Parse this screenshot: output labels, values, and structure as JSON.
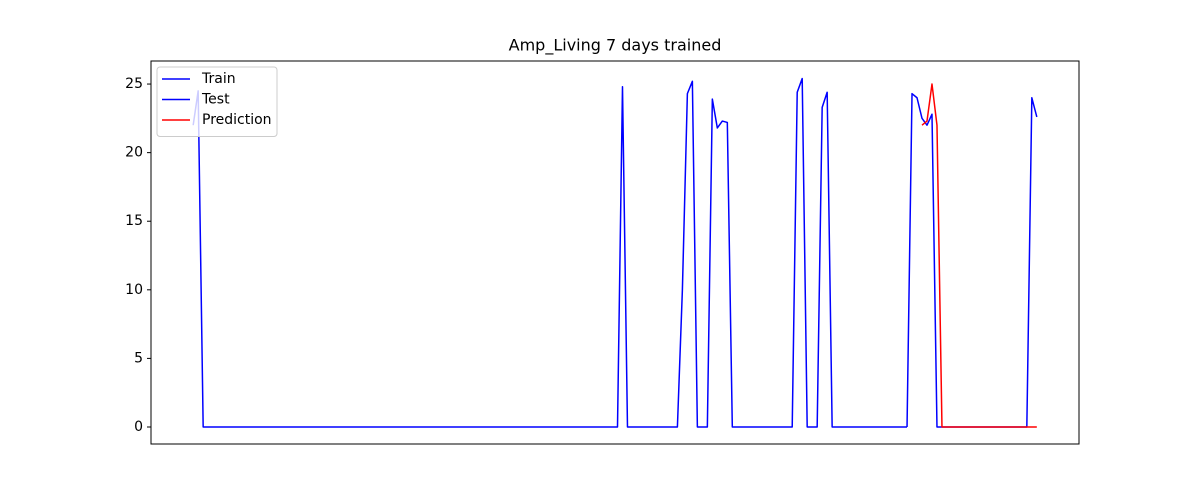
{
  "chart_data": {
    "type": "line",
    "title": "Amp_Living 7 days trained",
    "series": [
      {
        "name": "Train",
        "color": "#0000ff",
        "values": [
          22,
          24.5,
          0,
          0,
          0,
          0,
          0,
          0,
          0,
          0,
          0,
          0,
          0,
          0,
          0,
          0,
          0,
          0,
          0,
          0,
          0,
          0,
          0,
          0,
          0,
          0,
          0,
          0,
          0,
          0,
          0,
          0,
          0,
          0,
          0,
          0,
          0,
          0,
          0,
          0,
          0,
          0,
          0,
          0,
          0,
          0,
          0,
          0,
          0,
          0,
          0,
          0,
          0,
          0,
          0,
          0,
          0,
          0,
          0,
          0,
          0,
          0,
          0,
          0,
          0,
          0,
          0,
          0,
          0,
          0,
          0,
          0,
          0,
          0,
          0,
          0,
          0,
          0,
          0,
          0,
          0,
          0,
          0,
          0,
          0,
          0,
          24.8,
          0,
          0,
          0,
          0,
          0,
          0,
          0,
          0,
          0,
          0,
          0,
          10,
          24.3,
          25.2,
          0,
          0,
          0,
          23.9,
          21.8,
          22.3,
          22.2,
          0,
          0,
          0,
          0,
          0,
          0,
          0,
          0,
          0,
          0,
          0,
          0,
          0,
          24.4,
          25.4,
          0,
          0,
          0,
          23.3,
          24.4,
          0,
          0,
          0,
          0,
          0,
          0,
          0,
          0,
          0,
          0,
          0,
          0,
          0,
          0,
          0,
          0,
          null,
          null,
          null,
          null,
          null,
          null,
          null,
          null,
          null,
          null,
          null,
          null,
          null,
          null,
          null,
          null,
          null,
          null,
          null,
          null,
          null,
          null,
          null,
          null,
          null,
          null
        ]
      },
      {
        "name": "Test",
        "color": "#0000ff",
        "values": [
          null,
          null,
          null,
          null,
          null,
          null,
          null,
          null,
          null,
          null,
          null,
          null,
          null,
          null,
          null,
          null,
          null,
          null,
          null,
          null,
          null,
          null,
          null,
          null,
          null,
          null,
          null,
          null,
          null,
          null,
          null,
          null,
          null,
          null,
          null,
          null,
          null,
          null,
          null,
          null,
          null,
          null,
          null,
          null,
          null,
          null,
          null,
          null,
          null,
          null,
          null,
          null,
          null,
          null,
          null,
          null,
          null,
          null,
          null,
          null,
          null,
          null,
          null,
          null,
          null,
          null,
          null,
          null,
          null,
          null,
          null,
          null,
          null,
          null,
          null,
          null,
          null,
          null,
          null,
          null,
          null,
          null,
          null,
          null,
          null,
          null,
          null,
          null,
          null,
          null,
          null,
          null,
          null,
          null,
          null,
          null,
          null,
          null,
          null,
          null,
          null,
          null,
          null,
          null,
          null,
          null,
          null,
          null,
          null,
          null,
          null,
          null,
          null,
          null,
          null,
          null,
          null,
          null,
          null,
          null,
          null,
          null,
          null,
          null,
          null,
          null,
          null,
          null,
          null,
          null,
          null,
          null,
          null,
          null,
          null,
          null,
          null,
          null,
          null,
          null,
          null,
          null,
          null,
          0,
          24.3,
          24,
          22.5,
          22,
          22.8,
          0,
          0,
          0,
          0,
          0,
          0,
          0,
          0,
          0,
          0,
          0,
          0,
          0,
          0,
          0,
          0,
          0,
          0,
          0,
          24,
          22.6
        ]
      },
      {
        "name": "Prediction",
        "color": "#ff0000",
        "values": [
          null,
          null,
          null,
          null,
          null,
          null,
          null,
          null,
          null,
          null,
          null,
          null,
          null,
          null,
          null,
          null,
          null,
          null,
          null,
          null,
          null,
          null,
          null,
          null,
          null,
          null,
          null,
          null,
          null,
          null,
          null,
          null,
          null,
          null,
          null,
          null,
          null,
          null,
          null,
          null,
          null,
          null,
          null,
          null,
          null,
          null,
          null,
          null,
          null,
          null,
          null,
          null,
          null,
          null,
          null,
          null,
          null,
          null,
          null,
          null,
          null,
          null,
          null,
          null,
          null,
          null,
          null,
          null,
          null,
          null,
          null,
          null,
          null,
          null,
          null,
          null,
          null,
          null,
          null,
          null,
          null,
          null,
          null,
          null,
          null,
          null,
          null,
          null,
          null,
          null,
          null,
          null,
          null,
          null,
          null,
          null,
          null,
          null,
          null,
          null,
          null,
          null,
          null,
          null,
          null,
          null,
          null,
          null,
          null,
          null,
          null,
          null,
          null,
          null,
          null,
          null,
          null,
          null,
          null,
          null,
          null,
          null,
          null,
          null,
          null,
          null,
          null,
          null,
          null,
          null,
          null,
          null,
          null,
          null,
          null,
          null,
          null,
          null,
          null,
          null,
          null,
          null,
          null,
          null,
          null,
          null,
          22,
          22.3,
          25,
          22,
          0,
          0,
          0,
          0,
          0,
          0,
          0,
          0,
          0,
          0,
          0,
          0,
          0,
          0,
          0,
          0,
          0,
          0,
          0,
          0
        ]
      }
    ],
    "ylim": [
      -1.24,
      26.68
    ],
    "yticks": [
      0,
      5,
      10,
      15,
      20,
      25
    ],
    "grid": false,
    "legend": "upper left"
  }
}
